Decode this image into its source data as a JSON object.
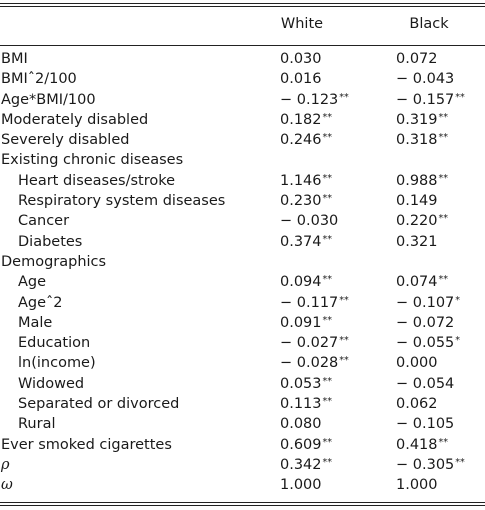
{
  "columns": [
    "White",
    "Black"
  ],
  "rows": [
    {
      "label": "BMI",
      "indent": false,
      "white": "0.030",
      "white_sig": "",
      "black": "0.072",
      "black_sig": ""
    },
    {
      "label": "BMIˆ2/100",
      "indent": false,
      "white": "0.016",
      "white_sig": "",
      "black": "− 0.043",
      "black_sig": ""
    },
    {
      "label": "Age*BMI/100",
      "indent": false,
      "white": "− 0.123",
      "white_sig": "**",
      "black": "− 0.157",
      "black_sig": "**"
    },
    {
      "label": "Moderately disabled",
      "indent": false,
      "white": "0.182",
      "white_sig": "**",
      "black": "0.319",
      "black_sig": "**"
    },
    {
      "label": "Severely disabled",
      "indent": false,
      "white": "0.246",
      "white_sig": "**",
      "black": "0.318",
      "black_sig": "**"
    },
    {
      "label": "Existing chronic diseases",
      "indent": false,
      "white": "",
      "white_sig": "",
      "black": "",
      "black_sig": ""
    },
    {
      "label": "Heart diseases/stroke",
      "indent": true,
      "white": "1.146",
      "white_sig": "**",
      "black": "0.988",
      "black_sig": "**"
    },
    {
      "label": "Respiratory system diseases",
      "indent": true,
      "white": "0.230",
      "white_sig": "**",
      "black": "0.149",
      "black_sig": ""
    },
    {
      "label": "Cancer",
      "indent": true,
      "white": "− 0.030",
      "white_sig": "",
      "black": "0.220",
      "black_sig": "**"
    },
    {
      "label": "Diabetes",
      "indent": true,
      "white": "0.374",
      "white_sig": "**",
      "black": "0.321",
      "black_sig": ""
    },
    {
      "label": "Demographics",
      "indent": false,
      "white": "",
      "white_sig": "",
      "black": "",
      "black_sig": ""
    },
    {
      "label": "Age",
      "indent": true,
      "white": "0.094",
      "white_sig": "**",
      "black": "0.074",
      "black_sig": "**"
    },
    {
      "label": "Ageˆ2",
      "indent": true,
      "white": "− 0.117",
      "white_sig": "**",
      "black": "− 0.107",
      "black_sig": "*"
    },
    {
      "label": "Male",
      "indent": true,
      "white": "0.091",
      "white_sig": "**",
      "black": "− 0.072",
      "black_sig": ""
    },
    {
      "label": "Education",
      "indent": true,
      "white": "− 0.027",
      "white_sig": "**",
      "black": "− 0.055",
      "black_sig": "*"
    },
    {
      "label": "ln(income)",
      "indent": true,
      "white": "− 0.028",
      "white_sig": "**",
      "black": "0.000",
      "black_sig": ""
    },
    {
      "label": "Widowed",
      "indent": true,
      "white": "0.053",
      "white_sig": "**",
      "black": "− 0.054",
      "black_sig": ""
    },
    {
      "label": "Separated or divorced",
      "indent": true,
      "white": "0.113",
      "white_sig": "**",
      "black": "0.062",
      "black_sig": ""
    },
    {
      "label": "Rural",
      "indent": true,
      "white": "0.080",
      "white_sig": "",
      "black": "− 0.105",
      "black_sig": ""
    },
    {
      "label": "Ever smoked cigarettes",
      "indent": false,
      "white": "0.609",
      "white_sig": "**",
      "black": "0.418",
      "black_sig": "**"
    },
    {
      "label": "ρ",
      "indent": false,
      "greek": true,
      "white": "0.342",
      "white_sig": "**",
      "black": "− 0.305",
      "black_sig": "**"
    },
    {
      "label": "ω",
      "indent": false,
      "greek": true,
      "white": "1.000",
      "white_sig": "",
      "black": "1.000",
      "black_sig": ""
    }
  ]
}
